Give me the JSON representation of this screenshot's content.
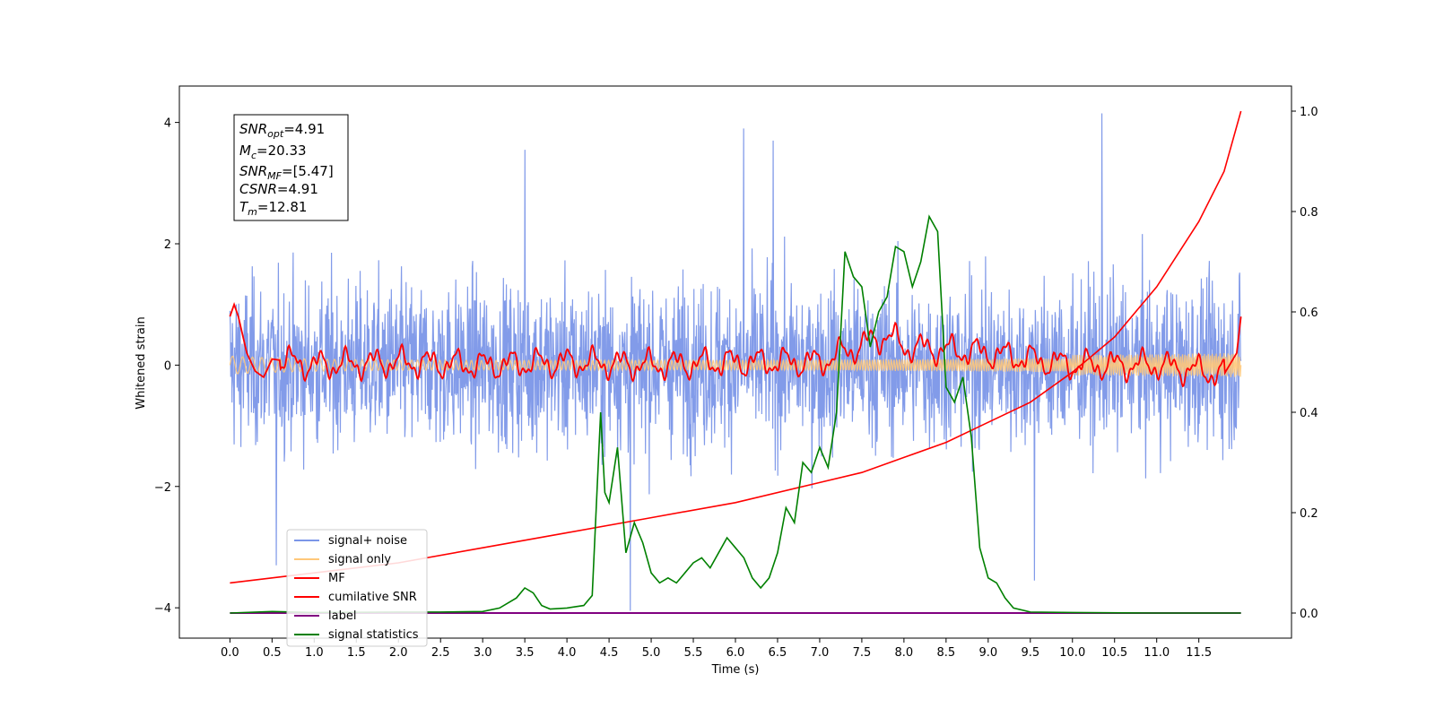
{
  "chart_data": {
    "type": "line",
    "title": "",
    "xlabel": "Time (s)",
    "ylabel": "Whitened strain",
    "y2label": "",
    "xlim": [
      -0.6,
      12.6
    ],
    "ylim": [
      -4.5,
      4.6
    ],
    "y2lim": [
      -0.05,
      1.05
    ],
    "x_ticks": [
      "0.0",
      "0.5",
      "1.0",
      "1.5",
      "2.0",
      "2.5",
      "3.0",
      "3.5",
      "4.0",
      "4.5",
      "5.0",
      "5.5",
      "6.0",
      "6.5",
      "7.0",
      "7.5",
      "8.0",
      "8.5",
      "9.0",
      "9.5",
      "10.0",
      "10.5",
      "11.0",
      "11.5"
    ],
    "y_ticks": [
      "4",
      "2",
      "0",
      "−2",
      "−4"
    ],
    "y2_ticks": [
      "1.0",
      "0.8",
      "0.6",
      "0.4",
      "0.2",
      "0.0"
    ],
    "grid": false,
    "legend_position": "lower-left",
    "annotation": {
      "snr_opt": {
        "base": "SNR",
        "sub": "opt",
        "value": "=4.91"
      },
      "mc": {
        "base": "M",
        "sub": "c",
        "value": "=20.33"
      },
      "snr_mf": {
        "base": "SNR",
        "sub": "MF",
        "value": "=[5.47]"
      },
      "csnr": {
        "base": "CSNR",
        "value": "=4.91"
      },
      "tm": {
        "base": "T",
        "sub": "m",
        "value": "=12.81"
      }
    },
    "series": [
      {
        "name": "signal+ noise",
        "color": "#7b96e8",
        "axis": "left",
        "description_x_range": [
          0,
          12
        ],
        "envelope": [
          -2.6,
          2.6
        ],
        "peaks": [
          [
            10.35,
            4.15
          ],
          [
            6.1,
            3.9
          ],
          [
            6.45,
            3.7
          ],
          [
            3.5,
            3.55
          ],
          [
            4.75,
            -4.05
          ],
          [
            9.55,
            -3.55
          ],
          [
            0.55,
            -3.3
          ]
        ]
      },
      {
        "name": "signal only",
        "color": "#ffc87a",
        "axis": "left",
        "description": "small chirp oscillation growing toward 12 s",
        "amplitude_start": 0.15,
        "amplitude_end": 0.3
      },
      {
        "name": "MF",
        "color": "#ff0000",
        "axis": "left",
        "x": [
          0.0,
          0.05,
          0.1,
          0.2,
          0.3,
          0.4,
          0.5,
          1.0,
          2.0,
          3.0,
          4.0,
          5.0,
          6.0,
          7.0,
          7.8,
          8.0,
          9.0,
          10.0,
          11.0,
          11.8,
          11.95,
          12.0
        ],
        "y": [
          0.8,
          1.0,
          0.8,
          0.2,
          -0.1,
          -0.2,
          0.1,
          0.0,
          0.05,
          0.0,
          0.05,
          0.0,
          0.05,
          0.05,
          0.5,
          0.3,
          0.2,
          0.0,
          0.0,
          -0.15,
          0.2,
          0.8
        ]
      },
      {
        "name": "cumilative SNR",
        "color": "#ff0000",
        "axis": "right",
        "x": [
          0,
          1,
          2,
          3,
          4,
          5,
          6,
          7,
          7.5,
          8,
          8.5,
          9,
          9.5,
          10,
          10.5,
          11,
          11.5,
          11.8,
          12
        ],
        "y": [
          0.06,
          0.08,
          0.1,
          0.13,
          0.16,
          0.19,
          0.22,
          0.26,
          0.28,
          0.31,
          0.34,
          0.38,
          0.42,
          0.48,
          0.55,
          0.65,
          0.78,
          0.88,
          1.0
        ]
      },
      {
        "name": "label",
        "color": "#800080",
        "axis": "right",
        "x": [
          0,
          12
        ],
        "y": [
          0.0,
          0.0
        ]
      },
      {
        "name": "signal statistics",
        "color": "#008000",
        "axis": "right",
        "x": [
          0,
          0.5,
          1.0,
          2.0,
          2.5,
          3.0,
          3.2,
          3.4,
          3.5,
          3.6,
          3.7,
          3.8,
          4.0,
          4.2,
          4.3,
          4.4,
          4.45,
          4.5,
          4.6,
          4.7,
          4.8,
          4.9,
          5.0,
          5.1,
          5.2,
          5.3,
          5.4,
          5.5,
          5.6,
          5.7,
          5.8,
          5.9,
          6.0,
          6.1,
          6.2,
          6.3,
          6.4,
          6.5,
          6.6,
          6.7,
          6.8,
          6.9,
          7.0,
          7.1,
          7.2,
          7.3,
          7.4,
          7.5,
          7.6,
          7.7,
          7.8,
          7.9,
          8.0,
          8.1,
          8.2,
          8.3,
          8.4,
          8.5,
          8.6,
          8.7,
          8.8,
          8.9,
          9.0,
          9.1,
          9.2,
          9.3,
          9.5,
          10.0,
          11.0,
          12.0
        ],
        "y": [
          0.0,
          0.003,
          0.001,
          0.002,
          0.002,
          0.003,
          0.01,
          0.03,
          0.05,
          0.04,
          0.015,
          0.008,
          0.01,
          0.015,
          0.035,
          0.4,
          0.24,
          0.22,
          0.33,
          0.12,
          0.18,
          0.14,
          0.08,
          0.06,
          0.07,
          0.06,
          0.08,
          0.1,
          0.11,
          0.09,
          0.12,
          0.15,
          0.13,
          0.11,
          0.07,
          0.05,
          0.07,
          0.12,
          0.21,
          0.18,
          0.3,
          0.28,
          0.33,
          0.29,
          0.4,
          0.72,
          0.67,
          0.65,
          0.53,
          0.6,
          0.63,
          0.73,
          0.72,
          0.65,
          0.7,
          0.79,
          0.76,
          0.45,
          0.42,
          0.47,
          0.35,
          0.13,
          0.07,
          0.06,
          0.03,
          0.01,
          0.002,
          0.001,
          0.0,
          0.0
        ]
      }
    ]
  }
}
